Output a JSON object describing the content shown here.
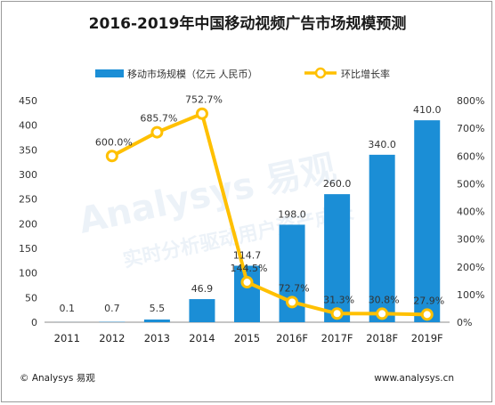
{
  "chart_data": {
    "type": "bar",
    "title": "2016-2019年中国移动视频广告市场规模预测",
    "categories": [
      "2011",
      "2012",
      "2013",
      "2014",
      "2015",
      "2016F",
      "2017F",
      "2018F",
      "2019F"
    ],
    "series": [
      {
        "name": "移动市场规模（亿元 人民币）",
        "type": "bar",
        "axis": "left",
        "values": [
          0.1,
          0.7,
          5.5,
          46.9,
          114.7,
          198.0,
          260.0,
          340.0,
          410.0
        ],
        "labels": [
          "0.1",
          "0.7",
          "5.5",
          "46.9",
          "114.7",
          "198.0",
          "260.0",
          "340.0",
          "410.0"
        ]
      },
      {
        "name": "环比增长率",
        "type": "line",
        "axis": "right",
        "values": [
          null,
          600.0,
          685.7,
          752.7,
          144.5,
          72.7,
          31.3,
          30.8,
          27.9
        ],
        "labels": [
          null,
          "600.0%",
          "685.7%",
          "752.7%",
          "144.5%",
          "72.7%",
          "31.3%",
          "30.8%",
          "27.9%"
        ]
      }
    ],
    "y_left": {
      "lim": [
        0,
        450
      ],
      "ticks": [
        0,
        50,
        100,
        150,
        200,
        250,
        300,
        350,
        400,
        450
      ]
    },
    "y_right": {
      "lim": [
        0,
        800
      ],
      "ticks": [
        0,
        100,
        200,
        300,
        400,
        500,
        600,
        700,
        800
      ],
      "suffix": "%"
    },
    "legend_position": "top",
    "grid": false,
    "colors": {
      "bar": "#1b8ed6",
      "line": "#ffc000",
      "marker_fill": "#ffffff"
    }
  },
  "footer": {
    "source": "© Analysys 易观",
    "url": "www.analysys.cn"
  },
  "watermark": {
    "text": "Analysys 易观",
    "subtext": "实时分析驱动用户资产成长"
  }
}
